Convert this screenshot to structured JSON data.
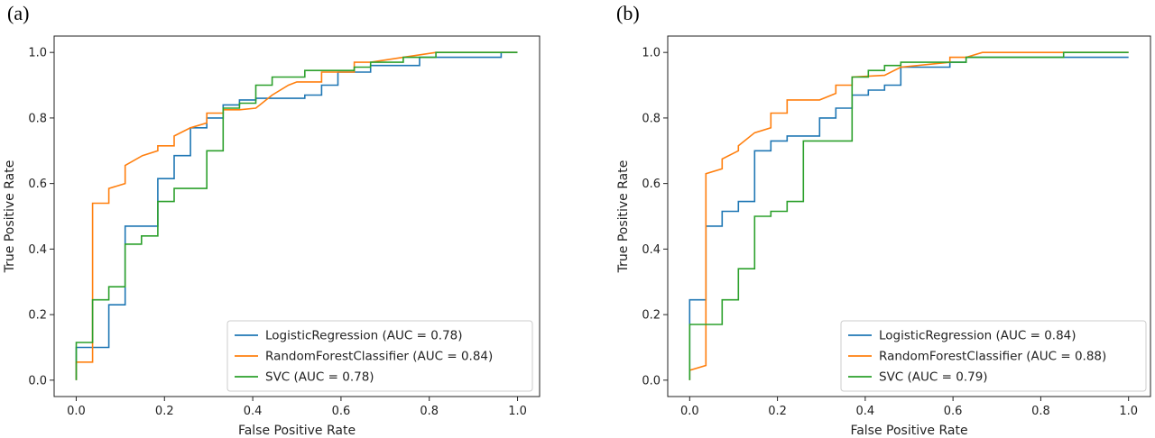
{
  "colors": {
    "LogisticRegression": "#1f77b4",
    "RandomForestClassifier": "#ff7f0e",
    "SVC": "#2ca02c"
  },
  "chart_data": [
    {
      "type": "line",
      "panel_label": "(a)",
      "xlabel": "False Positive Rate",
      "ylabel": "True Positive Rate",
      "xlim": [
        -0.05,
        1.05
      ],
      "ylim": [
        -0.05,
        1.05
      ],
      "xticks": [
        "0.0",
        "0.2",
        "0.4",
        "0.6",
        "0.8",
        "1.0"
      ],
      "yticks": [
        "0.0",
        "0.2",
        "0.4",
        "0.6",
        "0.8",
        "1.0"
      ],
      "legend_position": "lower-right",
      "series": [
        {
          "name": "LogisticRegression (AUC = 0.78)",
          "color_key": "LogisticRegression",
          "points": [
            [
              0,
              0
            ],
            [
              0,
              0.1
            ],
            [
              0.074,
              0.1
            ],
            [
              0.074,
              0.23
            ],
            [
              0.111,
              0.23
            ],
            [
              0.111,
              0.47
            ],
            [
              0.185,
              0.47
            ],
            [
              0.185,
              0.615
            ],
            [
              0.222,
              0.615
            ],
            [
              0.222,
              0.685
            ],
            [
              0.259,
              0.685
            ],
            [
              0.259,
              0.77
            ],
            [
              0.296,
              0.77
            ],
            [
              0.296,
              0.8
            ],
            [
              0.333,
              0.8
            ],
            [
              0.333,
              0.84
            ],
            [
              0.37,
              0.84
            ],
            [
              0.37,
              0.855
            ],
            [
              0.407,
              0.855
            ],
            [
              0.407,
              0.86
            ],
            [
              0.518,
              0.86
            ],
            [
              0.518,
              0.87
            ],
            [
              0.556,
              0.87
            ],
            [
              0.556,
              0.9
            ],
            [
              0.593,
              0.9
            ],
            [
              0.593,
              0.94
            ],
            [
              0.667,
              0.94
            ],
            [
              0.667,
              0.96
            ],
            [
              0.778,
              0.96
            ],
            [
              0.778,
              0.985
            ],
            [
              0.963,
              0.985
            ],
            [
              0.963,
              1.0
            ],
            [
              1.0,
              1.0
            ]
          ]
        },
        {
          "name": "RandomForestClassifier (AUC = 0.84)",
          "color_key": "RandomForestClassifier",
          "points": [
            [
              0,
              0
            ],
            [
              0,
              0.055
            ],
            [
              0.037,
              0.055
            ],
            [
              0.037,
              0.54
            ],
            [
              0.074,
              0.54
            ],
            [
              0.074,
              0.585
            ],
            [
              0.111,
              0.6
            ],
            [
              0.111,
              0.655
            ],
            [
              0.15,
              0.685
            ],
            [
              0.185,
              0.7
            ],
            [
              0.185,
              0.715
            ],
            [
              0.222,
              0.715
            ],
            [
              0.222,
              0.745
            ],
            [
              0.259,
              0.77
            ],
            [
              0.296,
              0.785
            ],
            [
              0.296,
              0.815
            ],
            [
              0.333,
              0.815
            ],
            [
              0.333,
              0.825
            ],
            [
              0.37,
              0.825
            ],
            [
              0.407,
              0.83
            ],
            [
              0.444,
              0.87
            ],
            [
              0.481,
              0.9
            ],
            [
              0.5,
              0.91
            ],
            [
              0.556,
              0.91
            ],
            [
              0.556,
              0.94
            ],
            [
              0.63,
              0.94
            ],
            [
              0.63,
              0.97
            ],
            [
              0.667,
              0.97
            ],
            [
              0.741,
              0.985
            ],
            [
              0.815,
              1.0
            ],
            [
              1.0,
              1.0
            ]
          ]
        },
        {
          "name": "SVC (AUC = 0.78)",
          "color_key": "SVC",
          "points": [
            [
              0,
              0
            ],
            [
              0,
              0.115
            ],
            [
              0.037,
              0.115
            ],
            [
              0.037,
              0.245
            ],
            [
              0.074,
              0.245
            ],
            [
              0.074,
              0.285
            ],
            [
              0.111,
              0.285
            ],
            [
              0.111,
              0.415
            ],
            [
              0.148,
              0.415
            ],
            [
              0.148,
              0.44
            ],
            [
              0.185,
              0.44
            ],
            [
              0.185,
              0.545
            ],
            [
              0.222,
              0.545
            ],
            [
              0.222,
              0.585
            ],
            [
              0.296,
              0.585
            ],
            [
              0.296,
              0.7
            ],
            [
              0.333,
              0.7
            ],
            [
              0.333,
              0.83
            ],
            [
              0.37,
              0.83
            ],
            [
              0.37,
              0.845
            ],
            [
              0.407,
              0.845
            ],
            [
              0.407,
              0.9
            ],
            [
              0.444,
              0.9
            ],
            [
              0.444,
              0.925
            ],
            [
              0.518,
              0.925
            ],
            [
              0.518,
              0.945
            ],
            [
              0.63,
              0.945
            ],
            [
              0.63,
              0.955
            ],
            [
              0.667,
              0.955
            ],
            [
              0.667,
              0.97
            ],
            [
              0.741,
              0.97
            ],
            [
              0.741,
              0.985
            ],
            [
              0.815,
              0.985
            ],
            [
              0.815,
              1.0
            ],
            [
              1.0,
              1.0
            ]
          ]
        }
      ]
    },
    {
      "type": "line",
      "panel_label": "(b)",
      "xlabel": "False Positive Rate",
      "ylabel": "True Positive Rate",
      "xlim": [
        -0.05,
        1.05
      ],
      "ylim": [
        -0.05,
        1.05
      ],
      "xticks": [
        "0.0",
        "0.2",
        "0.4",
        "0.6",
        "0.8",
        "1.0"
      ],
      "yticks": [
        "0.0",
        "0.2",
        "0.4",
        "0.6",
        "0.8",
        "1.0"
      ],
      "legend_position": "lower-right",
      "series": [
        {
          "name": "LogisticRegression (AUC = 0.84)",
          "color_key": "LogisticRegression",
          "points": [
            [
              0,
              0
            ],
            [
              0,
              0.245
            ],
            [
              0.037,
              0.245
            ],
            [
              0.037,
              0.47
            ],
            [
              0.074,
              0.47
            ],
            [
              0.074,
              0.515
            ],
            [
              0.111,
              0.515
            ],
            [
              0.111,
              0.545
            ],
            [
              0.148,
              0.545
            ],
            [
              0.148,
              0.7
            ],
            [
              0.185,
              0.7
            ],
            [
              0.185,
              0.73
            ],
            [
              0.222,
              0.73
            ],
            [
              0.222,
              0.745
            ],
            [
              0.296,
              0.745
            ],
            [
              0.296,
              0.8
            ],
            [
              0.333,
              0.8
            ],
            [
              0.333,
              0.83
            ],
            [
              0.37,
              0.83
            ],
            [
              0.37,
              0.87
            ],
            [
              0.407,
              0.87
            ],
            [
              0.407,
              0.885
            ],
            [
              0.444,
              0.885
            ],
            [
              0.444,
              0.9
            ],
            [
              0.481,
              0.9
            ],
            [
              0.481,
              0.955
            ],
            [
              0.593,
              0.955
            ],
            [
              0.593,
              0.97
            ],
            [
              0.63,
              0.97
            ],
            [
              0.63,
              0.985
            ],
            [
              1.0,
              0.985
            ]
          ]
        },
        {
          "name": "RandomForestClassifier (AUC = 0.88)",
          "color_key": "RandomForestClassifier",
          "points": [
            [
              0,
              0
            ],
            [
              0,
              0.03
            ],
            [
              0.037,
              0.045
            ],
            [
              0.037,
              0.63
            ],
            [
              0.074,
              0.645
            ],
            [
              0.074,
              0.675
            ],
            [
              0.111,
              0.7
            ],
            [
              0.111,
              0.715
            ],
            [
              0.148,
              0.755
            ],
            [
              0.185,
              0.77
            ],
            [
              0.185,
              0.815
            ],
            [
              0.222,
              0.815
            ],
            [
              0.222,
              0.855
            ],
            [
              0.296,
              0.855
            ],
            [
              0.333,
              0.875
            ],
            [
              0.333,
              0.9
            ],
            [
              0.37,
              0.9
            ],
            [
              0.37,
              0.925
            ],
            [
              0.444,
              0.93
            ],
            [
              0.481,
              0.955
            ],
            [
              0.593,
              0.97
            ],
            [
              0.593,
              0.985
            ],
            [
              0.63,
              0.985
            ],
            [
              0.667,
              1.0
            ],
            [
              1.0,
              1.0
            ]
          ]
        },
        {
          "name": "SVC (AUC = 0.79)",
          "color_key": "SVC",
          "points": [
            [
              0,
              0
            ],
            [
              0,
              0.17
            ],
            [
              0.074,
              0.17
            ],
            [
              0.074,
              0.245
            ],
            [
              0.111,
              0.245
            ],
            [
              0.111,
              0.34
            ],
            [
              0.148,
              0.34
            ],
            [
              0.148,
              0.5
            ],
            [
              0.185,
              0.5
            ],
            [
              0.185,
              0.515
            ],
            [
              0.222,
              0.515
            ],
            [
              0.222,
              0.545
            ],
            [
              0.259,
              0.545
            ],
            [
              0.259,
              0.73
            ],
            [
              0.37,
              0.73
            ],
            [
              0.37,
              0.925
            ],
            [
              0.407,
              0.925
            ],
            [
              0.407,
              0.945
            ],
            [
              0.444,
              0.945
            ],
            [
              0.444,
              0.96
            ],
            [
              0.481,
              0.96
            ],
            [
              0.481,
              0.97
            ],
            [
              0.63,
              0.97
            ],
            [
              0.63,
              0.985
            ],
            [
              0.852,
              0.985
            ],
            [
              0.852,
              1.0
            ],
            [
              1.0,
              1.0
            ]
          ]
        }
      ]
    }
  ]
}
